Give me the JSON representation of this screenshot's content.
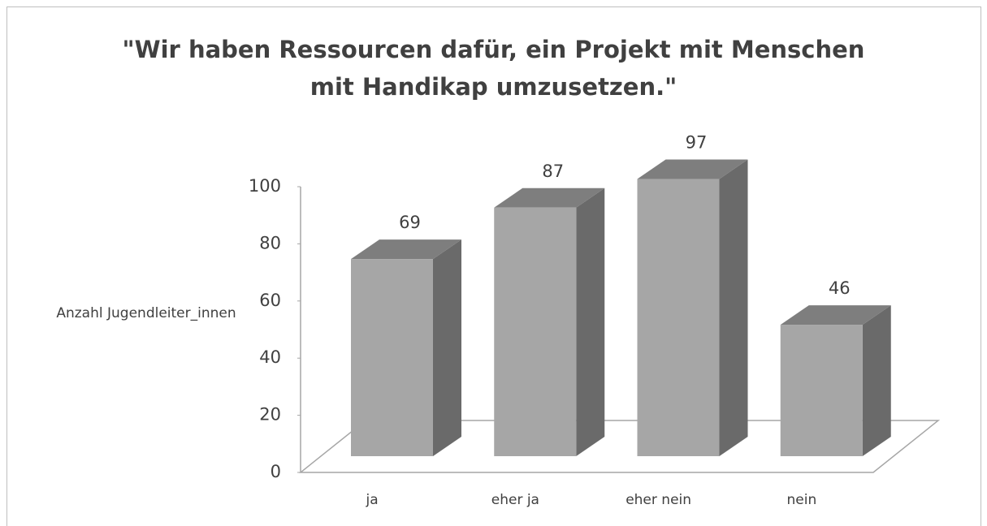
{
  "chart_data": {
    "type": "bar3d",
    "title": "\"Wir haben Ressourcen dafür, ein Projekt mit Menschen mit Handikap umzusetzen.\"",
    "y_label": "Anzahl Jugendleiter_innen",
    "categories": [
      "ja",
      "eher ja",
      "eher nein",
      "nein"
    ],
    "values": [
      69,
      87,
      97,
      46
    ],
    "color": "#a6a6a6",
    "ylim": [
      0,
      100
    ],
    "yticks": [
      0,
      20,
      40,
      60,
      80,
      100
    ]
  }
}
